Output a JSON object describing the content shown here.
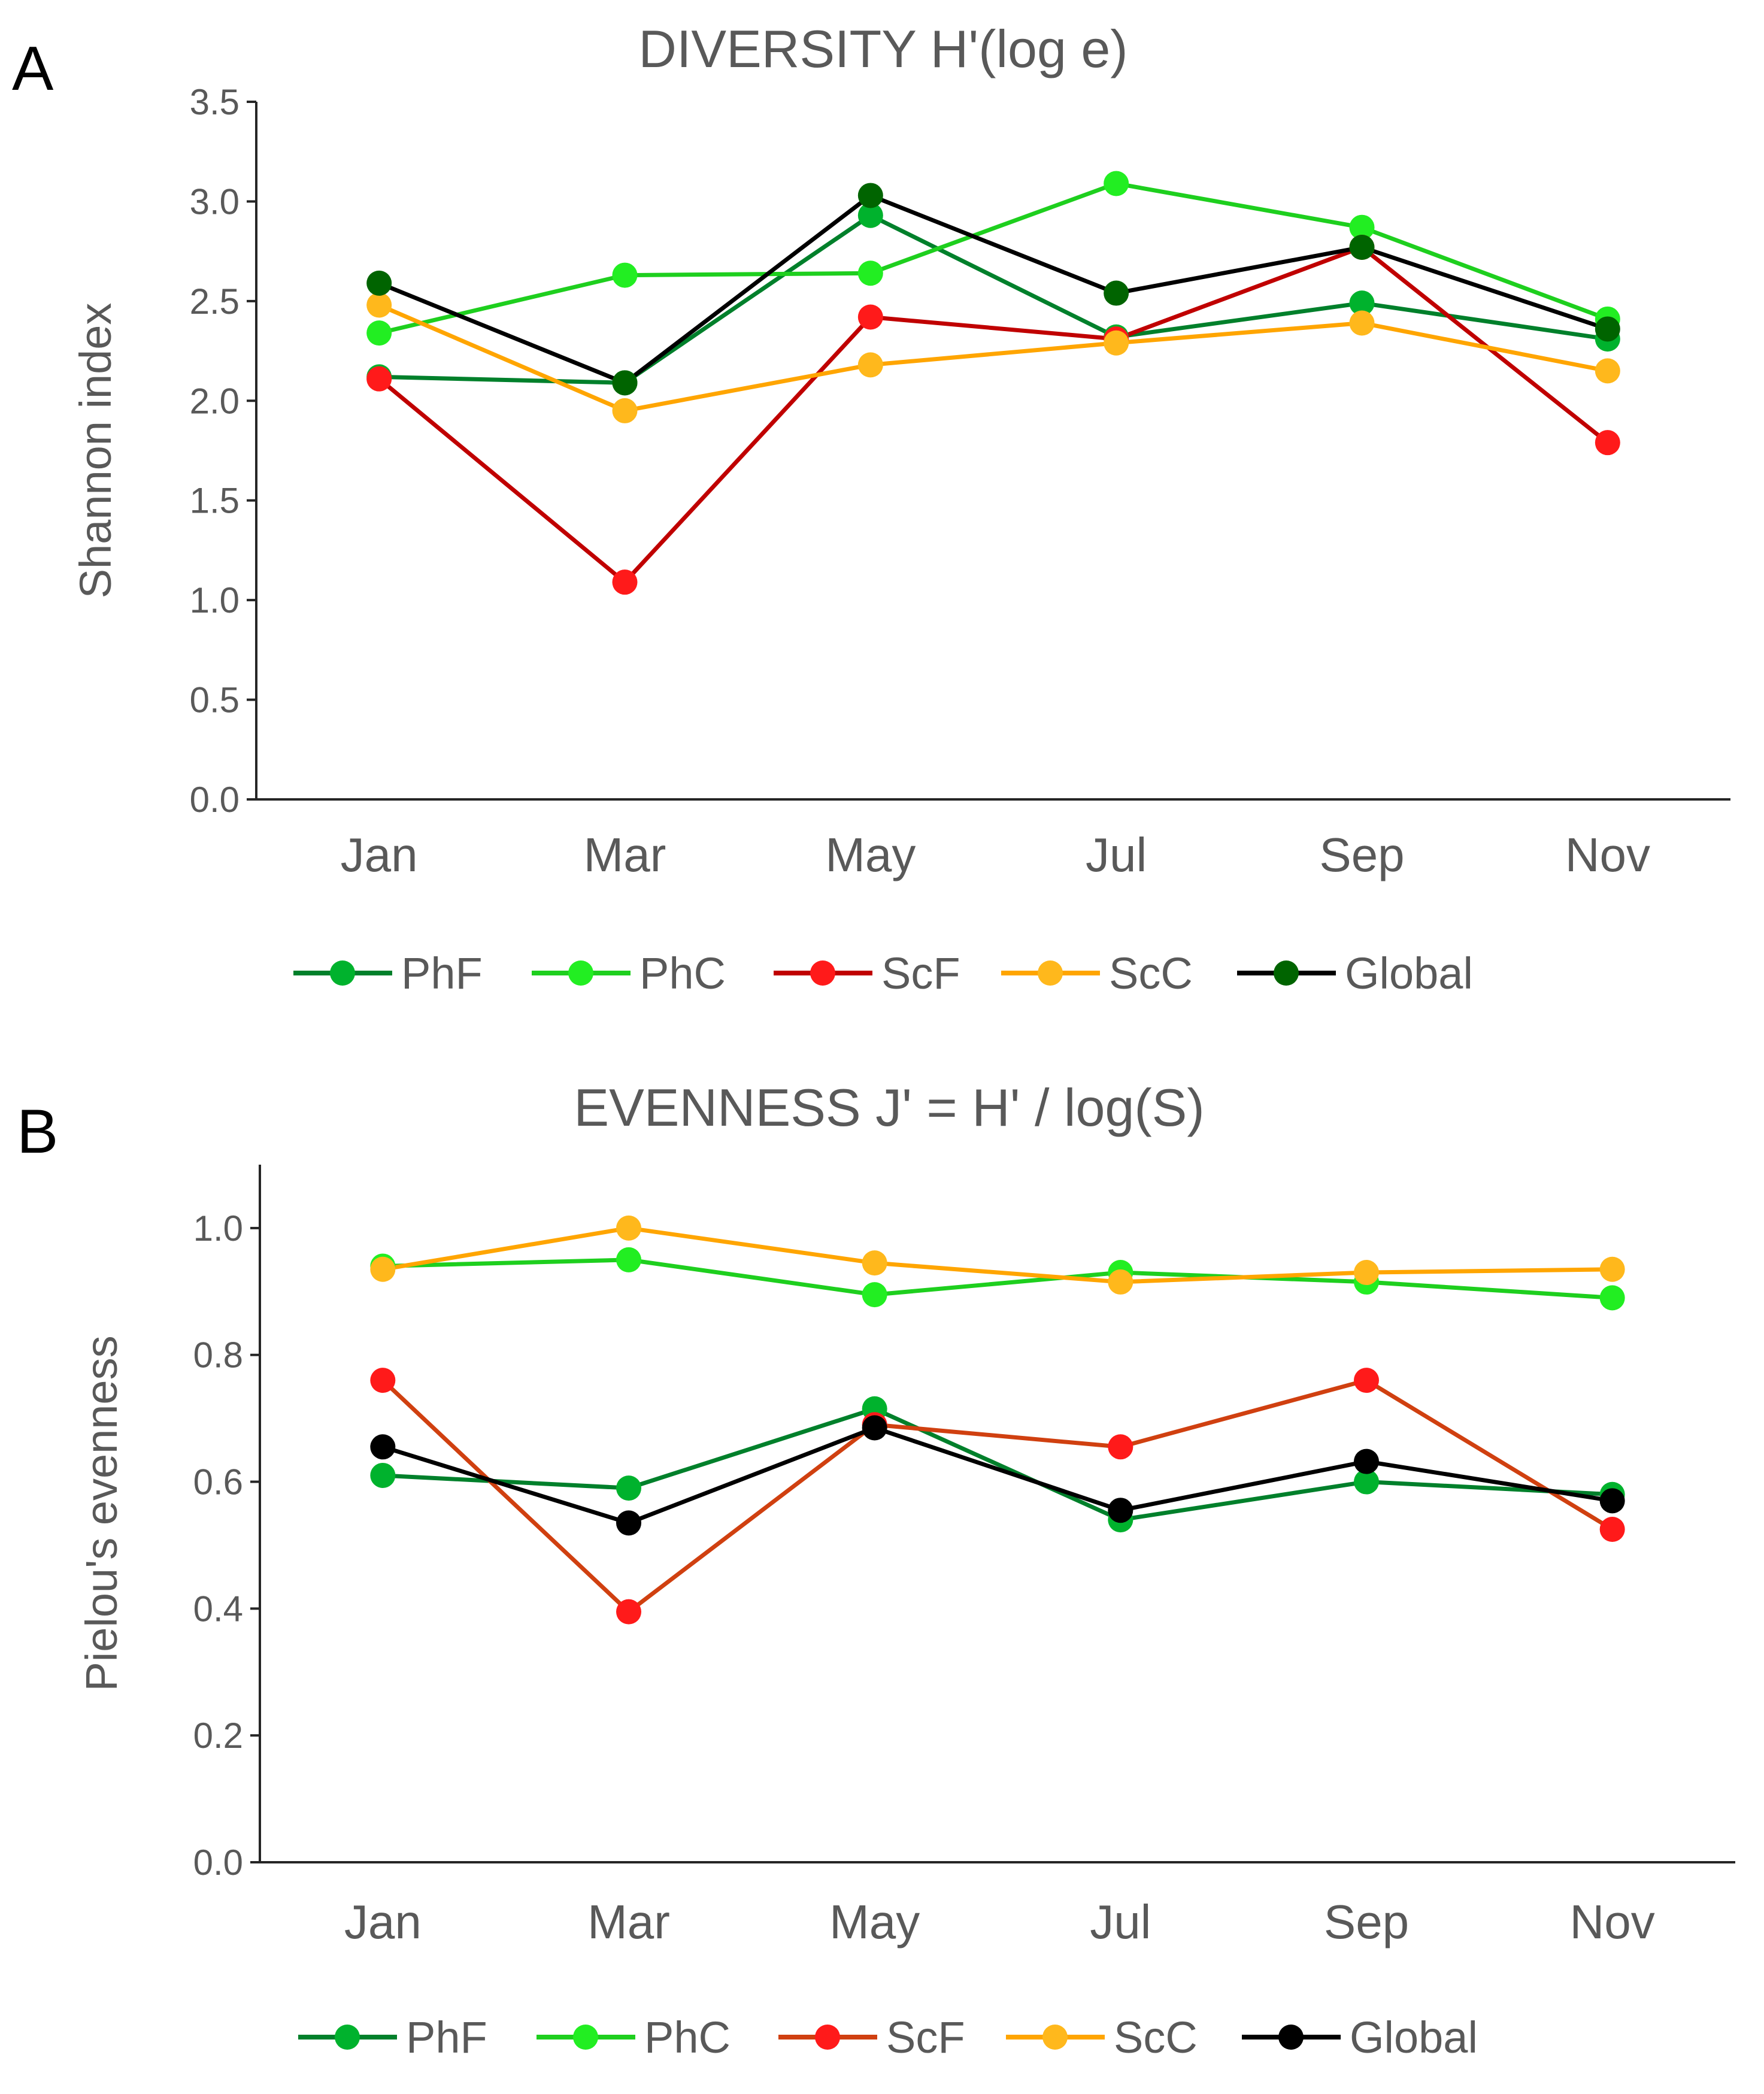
{
  "chart_data": [
    {
      "panel_label": "A",
      "type": "line",
      "title": "DIVERSITY H'(log e)",
      "xlabel": "",
      "ylabel": "Shannon index",
      "categories": [
        "Jan",
        "Mar",
        "May",
        "Jul",
        "Sep",
        "Nov"
      ],
      "ylim": [
        0,
        3.5
      ],
      "yticks": [
        0,
        0.5,
        1,
        1.5,
        2,
        2.5,
        3,
        3.5
      ],
      "ytick_labels": [
        "0.0",
        "0.5",
        "1.0",
        "1.5",
        "2.0",
        "2.5",
        "3.0",
        "3.5"
      ],
      "grid": false,
      "legend_position": "bottom",
      "series": [
        {
          "name": "PhF",
          "line_color": "#00802b",
          "marker_color": "#00b22d",
          "values": [
            2.12,
            2.09,
            2.93,
            2.32,
            2.49,
            2.31
          ]
        },
        {
          "name": "PhC",
          "line_color": "#1ecf1e",
          "marker_color": "#22ee22",
          "values": [
            2.34,
            2.63,
            2.64,
            3.09,
            2.87,
            2.41
          ]
        },
        {
          "name": "ScF",
          "line_color": "#c00000",
          "marker_color": "#ff1a1a",
          "values": [
            2.11,
            1.09,
            2.42,
            2.31,
            2.77,
            1.79
          ]
        },
        {
          "name": "ScC",
          "line_color": "#ffa500",
          "marker_color": "#ffb81c",
          "values": [
            2.48,
            1.95,
            2.18,
            2.29,
            2.39,
            2.15
          ]
        },
        {
          "name": "Global",
          "line_color": "#000000",
          "marker_color": "#006400",
          "values": [
            2.59,
            2.09,
            3.03,
            2.54,
            2.77,
            2.36
          ]
        }
      ]
    },
    {
      "panel_label": "B",
      "type": "line",
      "title": "EVENNESS J' = H' / log(S)",
      "xlabel": "",
      "ylabel": "Pielou's evenness",
      "categories": [
        "Jan",
        "Mar",
        "May",
        "Jul",
        "Sep",
        "Nov"
      ],
      "ylim": [
        0,
        1.1
      ],
      "yticks": [
        0,
        0.2,
        0.4,
        0.6,
        0.8,
        1.0
      ],
      "ytick_labels": [
        "0.0",
        "0.2",
        "0.4",
        "0.6",
        "0.8",
        "1.0"
      ],
      "grid": false,
      "legend_position": "bottom",
      "series": [
        {
          "name": "PhF",
          "line_color": "#00802b",
          "marker_color": "#00b22d",
          "values": [
            0.61,
            0.59,
            0.715,
            0.54,
            0.6,
            0.58
          ]
        },
        {
          "name": "PhC",
          "line_color": "#1ecf1e",
          "marker_color": "#22ee22",
          "values": [
            0.94,
            0.95,
            0.895,
            0.93,
            0.915,
            0.89
          ]
        },
        {
          "name": "ScF",
          "line_color": "#d04010",
          "marker_color": "#ff1a1a",
          "values": [
            0.76,
            0.395,
            0.69,
            0.655,
            0.76,
            0.525
          ]
        },
        {
          "name": "ScC",
          "line_color": "#ffa500",
          "marker_color": "#ffb81c",
          "values": [
            0.935,
            1.0,
            0.945,
            0.915,
            0.93,
            0.935
          ]
        },
        {
          "name": "Global",
          "line_color": "#000000",
          "marker_color": "#000000",
          "values": [
            0.655,
            0.535,
            0.685,
            0.555,
            0.632,
            0.57
          ]
        }
      ]
    }
  ]
}
